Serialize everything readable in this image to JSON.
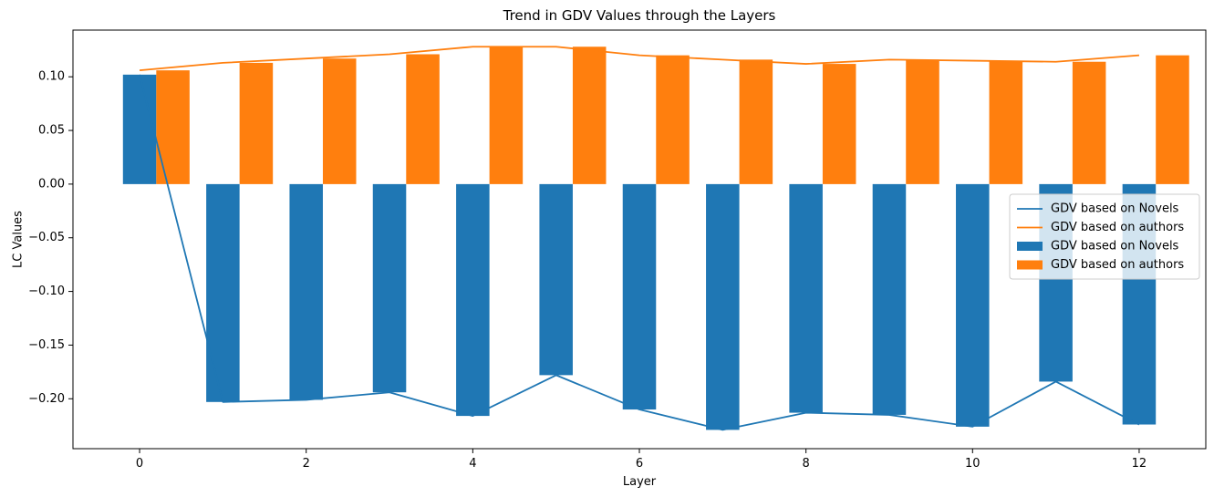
{
  "chart_data": {
    "type": "bar",
    "title": "Trend in GDV Values through the Layers",
    "xlabel": "Layer",
    "ylabel": "LC Values",
    "x": [
      0,
      1,
      2,
      3,
      4,
      5,
      6,
      7,
      8,
      9,
      10,
      11,
      12
    ],
    "xlim": [
      -0.8,
      12.8
    ],
    "ylim": [
      -0.2465,
      0.1435
    ],
    "xticks": [
      0,
      2,
      4,
      6,
      8,
      10,
      12
    ],
    "xtick_labels": [
      "0",
      "2",
      "4",
      "6",
      "8",
      "10",
      "12"
    ],
    "yticks": [
      0.1,
      0.05,
      0.0,
      -0.05,
      -0.1,
      -0.15,
      -0.2
    ],
    "ytick_labels": [
      "0.10",
      "0.05",
      "0.00",
      "−0.05",
      "−0.10",
      "−0.15",
      "−0.20"
    ],
    "grid": false,
    "legend_position": "center-right",
    "series": [
      {
        "name": "GDV based on Novels",
        "color": "#1f77b4",
        "values": [
          0.102,
          -0.203,
          -0.201,
          -0.194,
          -0.216,
          -0.178,
          -0.21,
          -0.229,
          -0.213,
          -0.215,
          -0.226,
          -0.184,
          -0.224
        ]
      },
      {
        "name": "GDV based on authors",
        "color": "#ff7f0e",
        "values": [
          0.106,
          0.113,
          0.117,
          0.121,
          0.128,
          0.128,
          0.12,
          0.116,
          0.112,
          0.116,
          0.115,
          0.114,
          0.12
        ]
      }
    ],
    "legend_entries": [
      {
        "label": "GDV based on Novels",
        "kind": "line",
        "color": "#1f77b4"
      },
      {
        "label": "GDV based on authors",
        "kind": "line",
        "color": "#ff7f0e"
      },
      {
        "label": "GDV based on Novels",
        "kind": "bar",
        "color": "#1f77b4"
      },
      {
        "label": "GDV based on authors",
        "kind": "bar",
        "color": "#ff7f0e"
      }
    ]
  }
}
